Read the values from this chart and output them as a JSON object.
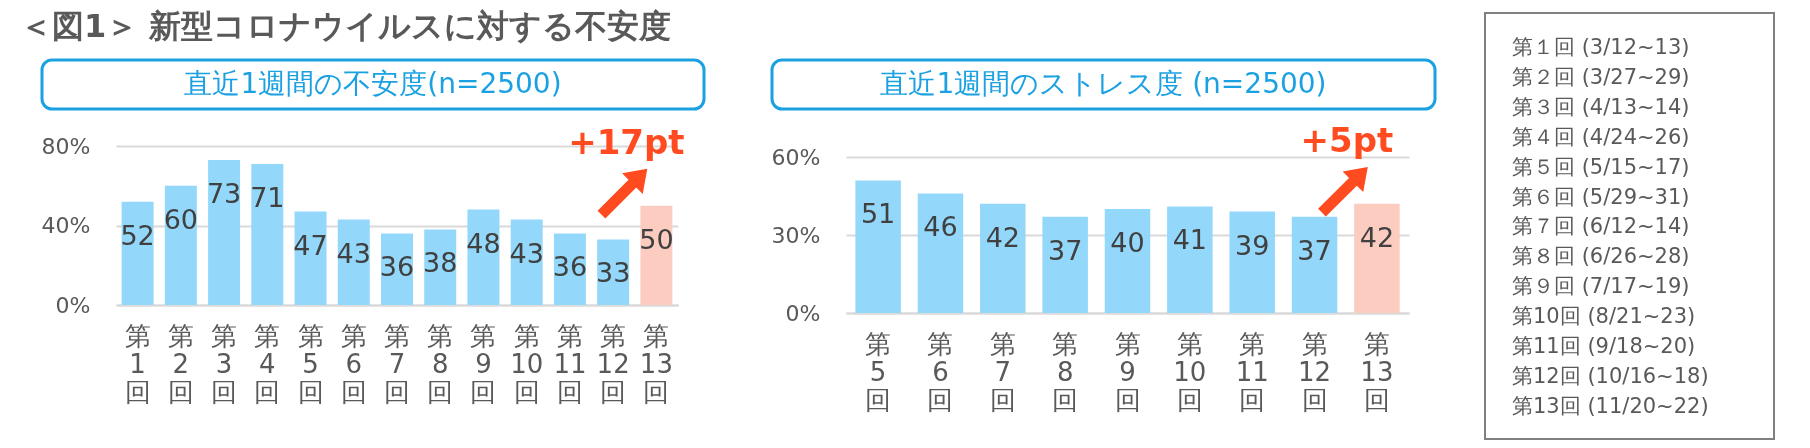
{
  "chart_data": [
    {
      "type": "bar",
      "title": "＜図1＞ 新型コロナウイルスに対する不安度",
      "subtitle": "直近1週間の不安度(n=2500)",
      "categories": [
        "第1回",
        "第2回",
        "第3回",
        "第4回",
        "第5回",
        "第6回",
        "第7回",
        "第8回",
        "第9回",
        "第10回",
        "第11回",
        "第12回",
        "第13回"
      ],
      "values": [
        52,
        60,
        73,
        71,
        47,
        43,
        36,
        38,
        48,
        43,
        36,
        33,
        50
      ],
      "colors": [
        "#93d8fb",
        "#93d8fb",
        "#93d8fb",
        "#93d8fb",
        "#93d8fb",
        "#93d8fb",
        "#93d8fb",
        "#93d8fb",
        "#93d8fb",
        "#93d8fb",
        "#93d8fb",
        "#93d8fb",
        "#fcccc1"
      ],
      "ylim": [
        0,
        80
      ],
      "yticks": [
        {
          "value": 0,
          "label": "0%"
        },
        {
          "value": 40,
          "label": "40%"
        },
        {
          "value": 80,
          "label": "80%"
        }
      ],
      "grid": "y",
      "data_labels": true,
      "annotations": [
        {
          "text": "+17pt",
          "x": "第13回",
          "y": 50
        }
      ]
    },
    {
      "type": "bar",
      "title": "直近1週間のストレス度 (n=2500)",
      "categories": [
        "第5回",
        "第6回",
        "第7回",
        "第8回",
        "第9回",
        "第10回",
        "第11回",
        "第12回",
        "第13回"
      ],
      "values": [
        51,
        46,
        42,
        37,
        40,
        41,
        39,
        37,
        42
      ],
      "colors": [
        "#93d8fb",
        "#93d8fb",
        "#93d8fb",
        "#93d8fb",
        "#93d8fb",
        "#93d8fb",
        "#93d8fb",
        "#93d8fb",
        "#fcccc1"
      ],
      "ylim": [
        0,
        60
      ],
      "yticks": [
        {
          "value": 0,
          "label": "0%"
        },
        {
          "value": 30,
          "label": "30%"
        },
        {
          "value": 60,
          "label": "60%"
        }
      ],
      "grid": "y",
      "data_labels": true,
      "annotations": [
        {
          "text": "+5pt",
          "x": "第13回",
          "y": 42
        }
      ]
    },
    {
      "type": "other",
      "annotations": [
        "第１回 (3/12~13)",
        "第２回 (3/27~29)",
        "第３回 (4/13~14)",
        "第４回 (4/24~26)",
        "第５回 (5/15~17)",
        "第６回 (5/29~31)",
        "第７回 (6/12~14)",
        "第８回 (6/26~28)",
        "第９回 (7/17~19)",
        "第10回 (8/21~23)",
        "第11回 (9/18~20)",
        "第12回 (10/16~18)",
        "第13回 (11/20~22)"
      ]
    }
  ]
}
